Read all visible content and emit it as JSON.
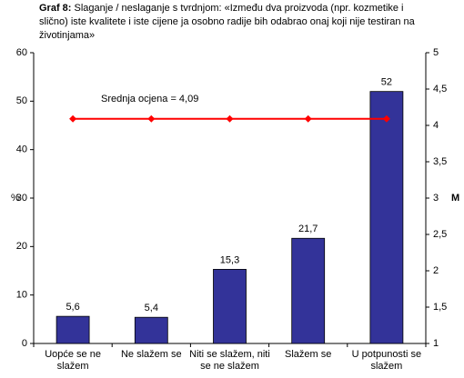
{
  "chart_data": {
    "type": "bar",
    "title_label": "Graf 8:",
    "title": "Slaganje / neslaganje s tvrdnjom: «Između dva proizvoda (npr. kozmetike i slično) iste kvalitete i iste cijene ja osobno radije bih odabrao onaj koji nije testiran na životinjama»",
    "categories": [
      [
        "Uopće se ne",
        "slažem"
      ],
      [
        "Ne slažem se"
      ],
      [
        "Niti se slažem, niti",
        "se ne slažem"
      ],
      [
        "Slažem se"
      ],
      [
        "U potpunosti se",
        "slažem"
      ]
    ],
    "series": [
      {
        "type": "bar",
        "color": "#333399",
        "values": [
          5.6,
          5.4,
          15.3,
          21.7,
          52
        ],
        "value_labels": [
          "5,6",
          "5,4",
          "15,3",
          "21,7",
          "52"
        ]
      },
      {
        "type": "line",
        "axis": "y2",
        "color": "#ff0000",
        "values": [
          4.09,
          4.09,
          4.09,
          4.09,
          4.09
        ]
      }
    ],
    "annotation": "Srednja ocjena = 4,09",
    "ylabel": "%",
    "y2label": "M",
    "ylim": [
      0,
      60
    ],
    "yticks": [
      0,
      10,
      20,
      30,
      40,
      50,
      60
    ],
    "y2lim": [
      1,
      5
    ],
    "y2ticks": [
      1,
      {
        "value": 1.5,
        "label": "1,5"
      },
      2,
      {
        "value": 2.5,
        "label": "2,5"
      },
      3,
      {
        "value": 3.5,
        "label": "3,5"
      },
      4,
      {
        "value": 4.5,
        "label": "4,5"
      },
      5
    ]
  }
}
